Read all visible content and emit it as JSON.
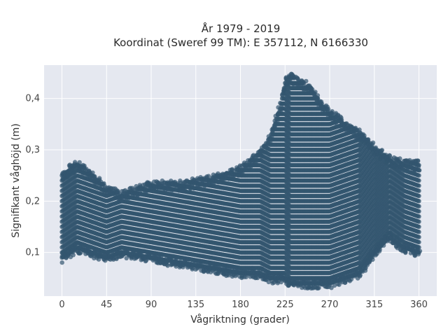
{
  "chart_data": {
    "type": "scatter",
    "title_line1": "År 1979 - 2019",
    "title_line2": "Koordinat (Sweref 99 TM): E 357112, N 6166330",
    "xlabel": "Vågriktning (grader)",
    "ylabel": "Signifikant våghöjd (m)",
    "xlim": [
      -18,
      378
    ],
    "ylim": [
      0.015,
      0.465
    ],
    "x_ticks": [
      0,
      45,
      90,
      135,
      180,
      225,
      270,
      315,
      360
    ],
    "x_tick_labels": [
      "0",
      "45",
      "90",
      "135",
      "180",
      "225",
      "270",
      "315",
      "360"
    ],
    "y_ticks": [
      0.1,
      0.2,
      0.3,
      0.4
    ],
    "y_tick_labels": [
      "0,1",
      "0,2",
      "0,3",
      "0,4"
    ],
    "grid": true,
    "marker_color": "#33566f",
    "background_color": "#e5e8f0",
    "envelope": {
      "x": [
        0,
        15,
        30,
        45,
        60,
        90,
        120,
        150,
        180,
        200,
        210,
        220,
        225,
        230,
        240,
        250,
        260,
        270,
        285,
        300,
        315,
        330,
        345,
        360
      ],
      "y_min": [
        0.08,
        0.1,
        0.09,
        0.08,
        0.09,
        0.08,
        0.07,
        0.06,
        0.05,
        0.05,
        0.04,
        0.04,
        0.04,
        0.03,
        0.03,
        0.03,
        0.03,
        0.03,
        0.04,
        0.05,
        0.09,
        0.12,
        0.1,
        0.09
      ],
      "y_max": [
        0.26,
        0.28,
        0.26,
        0.23,
        0.22,
        0.24,
        0.24,
        0.25,
        0.27,
        0.3,
        0.33,
        0.39,
        0.44,
        0.45,
        0.44,
        0.43,
        0.4,
        0.38,
        0.36,
        0.34,
        0.31,
        0.29,
        0.28,
        0.28
      ]
    }
  }
}
